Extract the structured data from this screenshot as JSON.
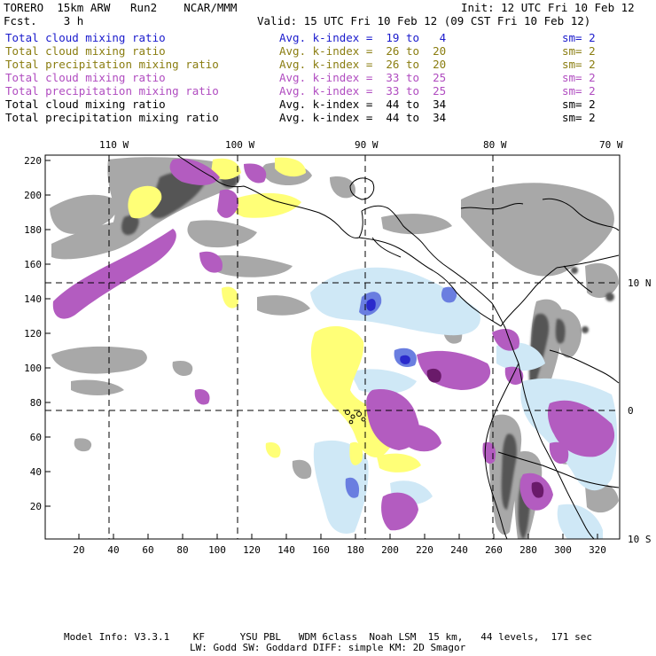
{
  "header": {
    "model": "TORERO",
    "grid": "15km ARW",
    "run": "Run2",
    "org": "NCAR/MMM",
    "init": "Init: 12 UTC Fri 10 Feb 12",
    "fcst_label": "Fcst.",
    "fcst_value": "3 h",
    "valid": "Valid: 15 UTC Fri 10 Feb 12 (09 CST Fri 10 Feb 12)"
  },
  "fields": [
    {
      "name": "Total cloud mixing ratio",
      "kidx": "Avg. k-index =  19 to   4",
      "sm": "sm= 2",
      "color": "#1a1acc"
    },
    {
      "name": "Total cloud mixing ratio",
      "kidx": "Avg. k-index =  26 to  20",
      "sm": "sm= 2",
      "color": "#8a7d10"
    },
    {
      "name": "Total precipitation mixing ratio",
      "kidx": "Avg. k-index =  26 to  20",
      "sm": "sm= 2",
      "color": "#8a7d10"
    },
    {
      "name": "Total cloud mixing ratio",
      "kidx": "Avg. k-index =  33 to  25",
      "sm": "sm= 2",
      "color": "#b04cc0"
    },
    {
      "name": "Total precipitation mixing ratio",
      "kidx": "Avg. k-index =  33 to  25",
      "sm": "sm= 2",
      "color": "#b04cc0"
    },
    {
      "name": "Total cloud mixing ratio",
      "kidx": "Avg. k-index =  44 to  34",
      "sm": "sm= 2",
      "color": "#000000"
    },
    {
      "name": "Total precipitation mixing ratio",
      "kidx": "Avg. k-index =  44 to  34",
      "sm": "sm= 2",
      "color": "#000000"
    }
  ],
  "axes": {
    "top_labels": [
      "110 W",
      "100 W",
      "90 W",
      "80 W",
      "70 W"
    ],
    "right_labels": [
      "10 N",
      "0",
      "10 S"
    ],
    "left_ticks": [
      "220",
      "200",
      "180",
      "160",
      "140",
      "120",
      "100",
      "80",
      "60",
      "40",
      "20"
    ],
    "bottom_ticks": [
      "20",
      "40",
      "60",
      "80",
      "100",
      "120",
      "140",
      "160",
      "180",
      "200",
      "220",
      "240",
      "260",
      "280",
      "300",
      "320"
    ]
  },
  "footer": {
    "line1": "Model Info: V3.3.1    KF      YSU PBL   WDM 6class  Noah LSM  15 km,   44 levels,  171 sec",
    "line2": "LW: Godd SW: Goddard DIFF: simple KM: 2D Smagor"
  },
  "colors": {
    "gray": "#a8a8a8",
    "dark_gray": "#555555",
    "yellow": "#ffff77",
    "purple": "#b35cc0",
    "dark_purple": "#6a1a6a",
    "light_blue": "#cfe8f6",
    "blue": "#6a7ee0",
    "dark_blue": "#2a2acc"
  }
}
